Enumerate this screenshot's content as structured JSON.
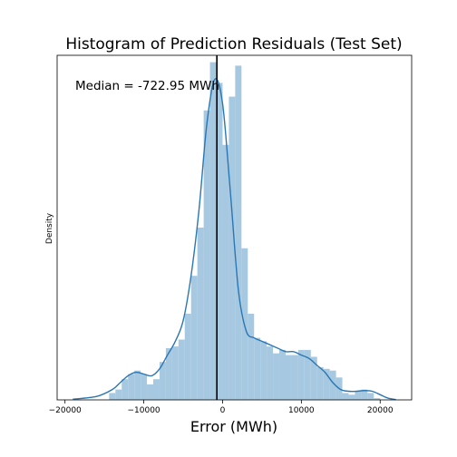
{
  "chart_data": {
    "type": "bar",
    "title": "Histogram of Prediction Residuals (Test Set)",
    "xlabel": "Error (MWh)",
    "ylabel": "Density",
    "xlim": [
      -21000,
      24000
    ],
    "ylim": [
      0,
      1
    ],
    "x_ticks": [
      -20000,
      -10000,
      0,
      10000,
      20000
    ],
    "x_tick_labels": [
      "−20000",
      "−10000",
      "0",
      "10000",
      "20000"
    ],
    "show_y_ticks": false,
    "grid": false,
    "bin_width": 800,
    "bins_start": -14400,
    "bar_heights": [
      0.02,
      0.03,
      0.06,
      0.075,
      0.085,
      0.075,
      0.045,
      0.06,
      0.11,
      0.15,
      0.155,
      0.175,
      0.25,
      0.36,
      0.5,
      0.84,
      0.98,
      0.92,
      0.74,
      0.88,
      0.97,
      0.44,
      0.25,
      0.18,
      0.17,
      0.155,
      0.135,
      0.145,
      0.13,
      0.13,
      0.145,
      0.145,
      0.125,
      0.095,
      0.09,
      0.085,
      0.065,
      0.02,
      0.015,
      0.025,
      0.03,
      0.02,
      0.005
    ],
    "kde": {
      "x": [
        -19000,
        -16000,
        -14000,
        -13000,
        -12000,
        -11000,
        -10000,
        -9000,
        -8000,
        -7000,
        -6000,
        -5000,
        -4000,
        -3000,
        -2000,
        -1000,
        0,
        1000,
        2000,
        3000,
        4000,
        5000,
        6000,
        7000,
        8000,
        9000,
        10000,
        11000,
        12000,
        13000,
        14000,
        15000,
        16000,
        17000,
        18000,
        19000,
        20000,
        21000,
        22000
      ],
      "y": [
        0.002,
        0.01,
        0.03,
        0.05,
        0.07,
        0.08,
        0.075,
        0.07,
        0.09,
        0.13,
        0.17,
        0.23,
        0.36,
        0.55,
        0.8,
        0.93,
        0.86,
        0.6,
        0.32,
        0.2,
        0.18,
        0.17,
        0.16,
        0.15,
        0.14,
        0.14,
        0.13,
        0.12,
        0.1,
        0.08,
        0.05,
        0.03,
        0.025,
        0.025,
        0.027,
        0.025,
        0.015,
        0.005,
        0.001
      ]
    },
    "median": -722.95,
    "annotation": "Median = -722.95 MWh",
    "bar_color": "#a6c8e0",
    "kde_color": "#2a77b4",
    "median_line_color": "#000000"
  }
}
